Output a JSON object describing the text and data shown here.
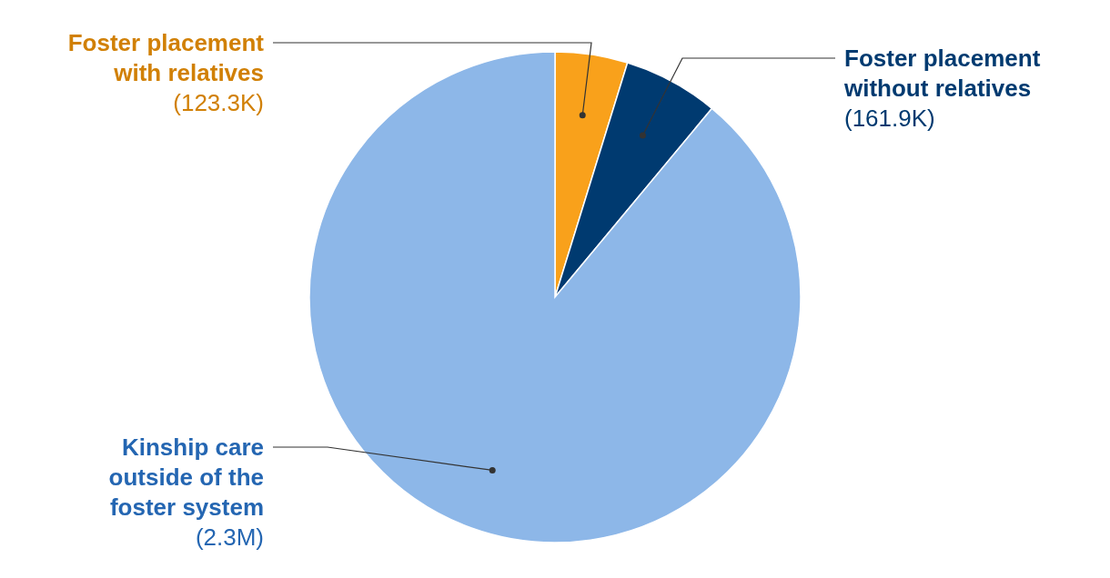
{
  "chart_data": {
    "type": "pie",
    "categories": [
      "Foster placement with relatives",
      "Foster placement without relatives",
      "Kinship care outside of the foster system"
    ],
    "values": [
      123300,
      161900,
      2300000
    ],
    "value_labels": [
      "(123.3K)",
      "(161.9K)",
      "(2.3M)"
    ],
    "colors": [
      "#f9a11b",
      "#003a70",
      "#8db7e8"
    ]
  }
}
